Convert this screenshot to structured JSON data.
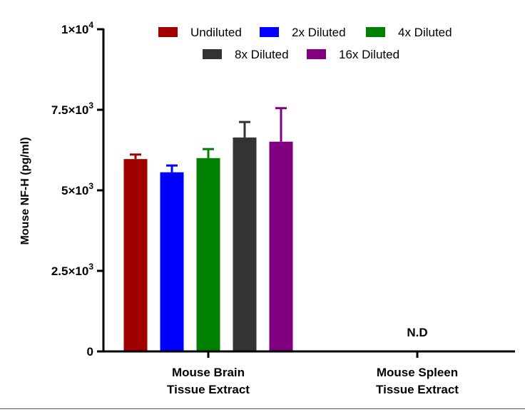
{
  "chart_data": {
    "type": "bar",
    "title": "",
    "xlabel": "",
    "ylabel": "Mouse NF-H (pg/ml)",
    "ylim": [
      0,
      10000
    ],
    "y_ticks": [
      0,
      2500,
      5000,
      7500,
      10000
    ],
    "y_tick_labels": [
      {
        "base": "0",
        "exp": ""
      },
      {
        "base": "2.5×10",
        "exp": "3"
      },
      {
        "base": "5×10",
        "exp": "3"
      },
      {
        "base": "7.5×10",
        "exp": "3"
      },
      {
        "base": "1×10",
        "exp": "4"
      }
    ],
    "categories": [
      [
        "Mouse Brain",
        "Tissue Extract"
      ],
      [
        "Mouse Spleen",
        "Tissue Extract"
      ]
    ],
    "series": [
      {
        "name": "Undiluted",
        "color": "#A00000",
        "values": [
          5970,
          null
        ],
        "errors": [
          140,
          null
        ]
      },
      {
        "name": "2x Diluted",
        "color": "#0000FF",
        "values": [
          5560,
          null
        ],
        "errors": [
          210,
          null
        ]
      },
      {
        "name": "4x Diluted",
        "color": "#008000",
        "values": [
          6000,
          null
        ],
        "errors": [
          280,
          null
        ]
      },
      {
        "name": "8x Diluted",
        "color": "#333333",
        "values": [
          6640,
          null
        ],
        "errors": [
          480,
          null
        ]
      },
      {
        "name": "16x Diluted",
        "color": "#800080",
        "values": [
          6510,
          null
        ],
        "errors": [
          1040,
          null
        ]
      }
    ],
    "annotations": [
      {
        "category_index": 1,
        "text": "N.D"
      }
    ],
    "legend": {
      "placement": "top",
      "rows": [
        [
          0,
          1,
          2
        ],
        [
          3,
          4
        ]
      ]
    },
    "grid": false
  }
}
